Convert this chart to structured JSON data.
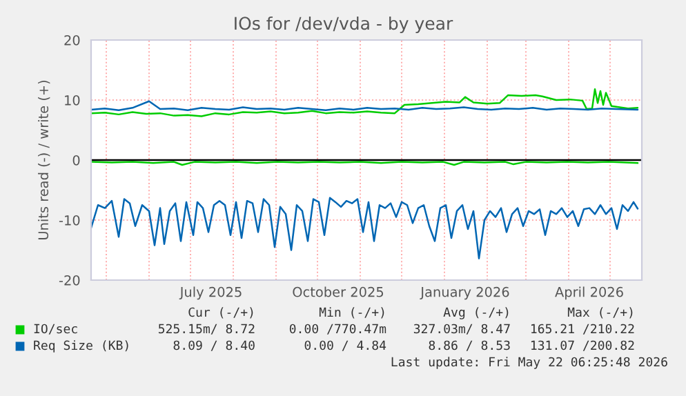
{
  "chart_data": {
    "type": "line",
    "title": "IOs for /dev/vda - by year",
    "ylabel": "Units read (-) / write (+)",
    "xlim": [
      "2025-04-20",
      "2026-05-24"
    ],
    "ylim": [
      -20,
      20
    ],
    "yticks": [
      -20,
      -10,
      0,
      10,
      20
    ],
    "xticks": [
      {
        "value": "2025-05-01",
        "label": null
      },
      {
        "value": "2025-06-01",
        "label": null
      },
      {
        "value": "2025-07-01",
        "label": null
      },
      {
        "value": "2025-07-16",
        "label": "July 2025"
      },
      {
        "value": "2025-08-01",
        "label": null
      },
      {
        "value": "2025-09-01",
        "label": null
      },
      {
        "value": "2025-10-01",
        "label": null
      },
      {
        "value": "2025-10-16",
        "label": "October 2025"
      },
      {
        "value": "2025-11-01",
        "label": null
      },
      {
        "value": "2025-12-01",
        "label": null
      },
      {
        "value": "2026-01-01",
        "label": null
      },
      {
        "value": "2026-01-16",
        "label": "January 2026"
      },
      {
        "value": "2026-02-01",
        "label": null
      },
      {
        "value": "2026-03-01",
        "label": null
      },
      {
        "value": "2026-04-01",
        "label": null
      },
      {
        "value": "2026-04-16",
        "label": "April 2026"
      },
      {
        "value": "2026-05-01",
        "label": null
      }
    ],
    "grid": true,
    "legend": "bottom",
    "ref_lines": [
      {
        "axis": "y",
        "value": 0,
        "color": "#000000"
      }
    ],
    "series": [
      {
        "name": "IO/sec",
        "color": "#00cc00",
        "x": [
          "2025-04-20",
          "2025-04-30",
          "2025-05-10",
          "2025-05-20",
          "2025-05-30",
          "2025-06-09",
          "2025-06-19",
          "2025-06-29",
          "2025-07-09",
          "2025-07-19",
          "2025-07-29",
          "2025-08-08",
          "2025-08-18",
          "2025-08-28",
          "2025-09-07",
          "2025-09-17",
          "2025-09-27",
          "2025-10-07",
          "2025-10-17",
          "2025-10-27",
          "2025-11-06",
          "2025-11-16",
          "2025-11-26",
          "2025-12-03",
          "2025-12-13",
          "2025-12-23",
          "2026-01-02",
          "2026-01-12",
          "2026-01-16",
          "2026-01-22",
          "2026-02-01",
          "2026-02-10",
          "2026-02-16",
          "2026-02-26",
          "2026-03-08",
          "2026-03-13",
          "2026-03-23",
          "2026-04-02",
          "2026-04-11",
          "2026-04-14",
          "2026-04-18",
          "2026-04-20",
          "2026-04-22",
          "2026-04-24",
          "2026-04-26",
          "2026-04-28",
          "2026-05-02",
          "2026-05-08",
          "2026-05-14",
          "2026-05-21"
        ],
        "values": [
          7.8,
          7.9,
          7.6,
          8.0,
          7.7,
          7.8,
          7.4,
          7.5,
          7.3,
          7.8,
          7.6,
          8.0,
          7.9,
          8.1,
          7.8,
          7.9,
          8.2,
          7.8,
          8.0,
          7.9,
          8.1,
          7.9,
          7.8,
          9.2,
          9.3,
          9.5,
          9.7,
          9.6,
          10.5,
          9.6,
          9.4,
          9.5,
          10.8,
          10.7,
          10.8,
          10.6,
          10.0,
          10.1,
          9.9,
          8.5,
          8.6,
          11.8,
          9.5,
          11.5,
          9.2,
          11.2,
          9.0,
          8.8,
          8.6,
          8.7
        ]
      },
      {
        "color": "#00cc00",
        "x": [
          "2025-04-20",
          "2025-05-05",
          "2025-05-20",
          "2025-06-04",
          "2025-06-19",
          "2025-06-25",
          "2025-07-04",
          "2025-07-19",
          "2025-08-03",
          "2025-08-18",
          "2025-09-02",
          "2025-09-17",
          "2025-10-02",
          "2025-10-17",
          "2025-11-01",
          "2025-11-16",
          "2025-12-01",
          "2025-12-16",
          "2025-12-31",
          "2026-01-08",
          "2026-01-15",
          "2026-01-30",
          "2026-02-14",
          "2026-02-20",
          "2026-03-01",
          "2026-03-16",
          "2026-03-31",
          "2026-04-15",
          "2026-04-30",
          "2026-05-21"
        ],
        "values": [
          -0.3,
          -0.4,
          -0.3,
          -0.5,
          -0.3,
          -0.8,
          -0.3,
          -0.4,
          -0.3,
          -0.5,
          -0.3,
          -0.4,
          -0.3,
          -0.4,
          -0.3,
          -0.5,
          -0.3,
          -0.4,
          -0.3,
          -0.8,
          -0.3,
          -0.4,
          -0.3,
          -0.7,
          -0.3,
          -0.4,
          -0.3,
          -0.4,
          -0.3,
          -0.5
        ]
      },
      {
        "name": "Req Size (KB)",
        "color": "#0066b3",
        "x": [
          "2025-04-20",
          "2025-04-30",
          "2025-05-10",
          "2025-05-20",
          "2025-06-01",
          "2025-06-09",
          "2025-06-19",
          "2025-06-29",
          "2025-07-09",
          "2025-07-19",
          "2025-07-29",
          "2025-08-08",
          "2025-08-18",
          "2025-08-28",
          "2025-09-07",
          "2025-09-17",
          "2025-09-27",
          "2025-10-07",
          "2025-10-17",
          "2025-10-27",
          "2025-11-06",
          "2025-11-16",
          "2025-11-26",
          "2025-12-06",
          "2025-12-16",
          "2025-12-26",
          "2026-01-05",
          "2026-01-15",
          "2026-01-25",
          "2026-02-04",
          "2026-02-14",
          "2026-02-24",
          "2026-03-06",
          "2026-03-16",
          "2026-03-26",
          "2026-04-05",
          "2026-04-15",
          "2026-04-25",
          "2026-05-05",
          "2026-05-21"
        ],
        "values": [
          8.4,
          8.6,
          8.3,
          8.7,
          9.8,
          8.5,
          8.6,
          8.3,
          8.7,
          8.5,
          8.4,
          8.8,
          8.5,
          8.6,
          8.4,
          8.7,
          8.5,
          8.3,
          8.6,
          8.4,
          8.7,
          8.5,
          8.6,
          8.4,
          8.7,
          8.5,
          8.6,
          8.8,
          8.5,
          8.4,
          8.6,
          8.5,
          8.7,
          8.4,
          8.6,
          8.5,
          8.4,
          8.6,
          8.5,
          8.4
        ]
      },
      {
        "color": "#0066b3",
        "x": [
          "2025-04-20",
          "2025-04-25",
          "2025-04-30",
          "2025-05-05",
          "2025-05-10",
          "2025-05-14",
          "2025-05-18",
          "2025-05-22",
          "2025-05-27",
          "2025-06-01",
          "2025-06-05",
          "2025-06-09",
          "2025-06-12",
          "2025-06-16",
          "2025-06-20",
          "2025-06-24",
          "2025-06-28",
          "2025-07-03",
          "2025-07-06",
          "2025-07-10",
          "2025-07-14",
          "2025-07-18",
          "2025-07-22",
          "2025-07-26",
          "2025-07-30",
          "2025-08-03",
          "2025-08-07",
          "2025-08-11",
          "2025-08-15",
          "2025-08-19",
          "2025-08-23",
          "2025-08-27",
          "2025-08-31",
          "2025-09-04",
          "2025-09-08",
          "2025-09-12",
          "2025-09-16",
          "2025-09-20",
          "2025-09-24",
          "2025-09-28",
          "2025-10-02",
          "2025-10-06",
          "2025-10-10",
          "2025-10-14",
          "2025-10-18",
          "2025-10-22",
          "2025-10-26",
          "2025-10-30",
          "2025-11-03",
          "2025-11-07",
          "2025-11-11",
          "2025-11-15",
          "2025-11-19",
          "2025-11-23",
          "2025-11-27",
          "2025-12-01",
          "2025-12-05",
          "2025-12-09",
          "2025-12-13",
          "2025-12-17",
          "2025-12-21",
          "2025-12-25",
          "2025-12-29",
          "2026-01-02",
          "2026-01-06",
          "2026-01-10",
          "2026-01-14",
          "2026-01-18",
          "2026-01-22",
          "2026-01-26",
          "2026-01-30",
          "2026-02-03",
          "2026-02-07",
          "2026-02-11",
          "2026-02-15",
          "2026-02-19",
          "2026-02-23",
          "2026-02-27",
          "2026-03-03",
          "2026-03-07",
          "2026-03-11",
          "2026-03-15",
          "2026-03-19",
          "2026-03-23",
          "2026-03-27",
          "2026-03-31",
          "2026-04-04",
          "2026-04-08",
          "2026-04-12",
          "2026-04-16",
          "2026-04-20",
          "2026-04-24",
          "2026-04-28",
          "2026-05-02",
          "2026-05-06",
          "2026-05-10",
          "2026-05-14",
          "2026-05-18",
          "2026-05-21"
        ],
        "values": [
          -11.3,
          -7.5,
          -8.0,
          -6.8,
          -12.8,
          -6.5,
          -7.2,
          -11.0,
          -7.5,
          -8.5,
          -14.2,
          -8.0,
          -14.0,
          -8.5,
          -7.2,
          -13.5,
          -7.0,
          -12.5,
          -7.0,
          -8.0,
          -12.0,
          -7.5,
          -6.8,
          -7.5,
          -12.5,
          -7.0,
          -13.0,
          -6.8,
          -7.2,
          -12.0,
          -6.5,
          -7.5,
          -14.5,
          -7.8,
          -9.0,
          -15.0,
          -7.5,
          -8.5,
          -13.5,
          -6.5,
          -7.0,
          -12.5,
          -6.3,
          -7.0,
          -7.8,
          -6.8,
          -7.2,
          -6.5,
          -12.0,
          -7.0,
          -13.5,
          -7.5,
          -8.0,
          -7.2,
          -9.5,
          -7.0,
          -7.5,
          -10.5,
          -8.0,
          -7.5,
          -11.0,
          -13.5,
          -8.0,
          -7.5,
          -13.0,
          -8.5,
          -7.5,
          -11.5,
          -8.5,
          -16.4,
          -10.0,
          -8.5,
          -9.5,
          -8.0,
          -12.0,
          -9.0,
          -8.0,
          -11.0,
          -8.5,
          -9.0,
          -8.2,
          -12.5,
          -8.5,
          -9.0,
          -8.0,
          -9.5,
          -8.5,
          -11.0,
          -8.2,
          -8.0,
          -9.0,
          -7.5,
          -9.0,
          -8.0,
          -11.5,
          -7.5,
          -8.5,
          -7.0,
          -8.1
        ]
      }
    ],
    "annotations": [
      "Cur (-/+)",
      "Min (-/+)",
      "Avg (-/+)",
      "Max (-/+)",
      "525.15m/ 8.72",
      "0.00 /770.47m",
      "327.03m/ 8.47",
      "165.21 /210.22",
      "8.09 / 8.40",
      "0.00 / 4.84",
      "8.86 / 8.53",
      "131.07 /200.82",
      "Last update: Fri May 22 06:25:48 2026"
    ]
  }
}
